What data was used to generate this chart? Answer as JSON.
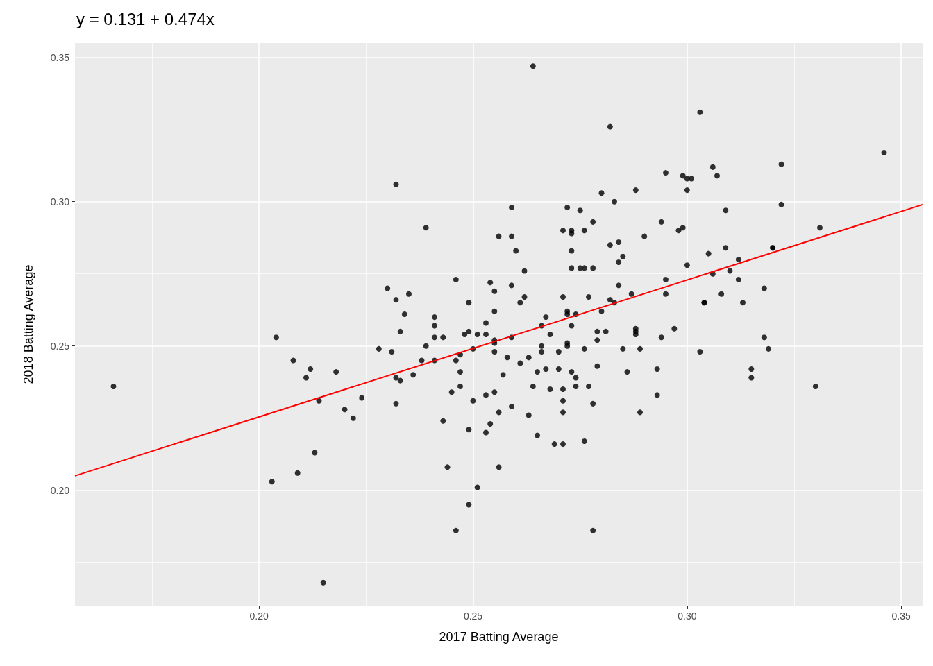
{
  "chart_data": {
    "type": "scatter",
    "title": "y = 0.131 + 0.474x",
    "xlabel": "2017 Batting Average",
    "ylabel": "2018 Batting Average",
    "xlim": [
      0.157,
      0.355
    ],
    "ylim": [
      0.16,
      0.355
    ],
    "xticks": [
      {
        "value": 0.2,
        "label": "0.20"
      },
      {
        "value": 0.25,
        "label": "0.25"
      },
      {
        "value": 0.3,
        "label": "0.30"
      },
      {
        "value": 0.35,
        "label": "0.35"
      }
    ],
    "yticks": [
      {
        "value": 0.2,
        "label": "0.20"
      },
      {
        "value": 0.25,
        "label": "0.25"
      },
      {
        "value": 0.3,
        "label": "0.30"
      },
      {
        "value": 0.35,
        "label": "0.35"
      }
    ],
    "grid": true,
    "series": [
      {
        "color": "#000000",
        "marker": "circle",
        "x": [
          0.166,
          0.203,
          0.204,
          0.208,
          0.209,
          0.211,
          0.212,
          0.213,
          0.214,
          0.215,
          0.218,
          0.22,
          0.222,
          0.224,
          0.228,
          0.23,
          0.231,
          0.232,
          0.232,
          0.232,
          0.232,
          0.233,
          0.233,
          0.234,
          0.235,
          0.236,
          0.238,
          0.239,
          0.239,
          0.241,
          0.241,
          0.241,
          0.241,
          0.243,
          0.243,
          0.244,
          0.245,
          0.246,
          0.246,
          0.246,
          0.247,
          0.247,
          0.247,
          0.248,
          0.249,
          0.249,
          0.249,
          0.249,
          0.25,
          0.25,
          0.251,
          0.251,
          0.253,
          0.253,
          0.253,
          0.253,
          0.254,
          0.254,
          0.255,
          0.255,
          0.255,
          0.255,
          0.255,
          0.255,
          0.256,
          0.256,
          0.256,
          0.257,
          0.258,
          0.259,
          0.259,
          0.259,
          0.259,
          0.259,
          0.26,
          0.261,
          0.261,
          0.262,
          0.262,
          0.263,
          0.263,
          0.264,
          0.265,
          0.265,
          0.266,
          0.266,
          0.266,
          0.267,
          0.267,
          0.268,
          0.268,
          0.269,
          0.27,
          0.27,
          0.271,
          0.271,
          0.271,
          0.271,
          0.271,
          0.271,
          0.272,
          0.272,
          0.272,
          0.272,
          0.272,
          0.273,
          0.273,
          0.273,
          0.273,
          0.273,
          0.273,
          0.274,
          0.274,
          0.274,
          0.275,
          0.275,
          0.276,
          0.276,
          0.276,
          0.276,
          0.277,
          0.277,
          0.278,
          0.278,
          0.278,
          0.278,
          0.279,
          0.279,
          0.279,
          0.28,
          0.28,
          0.281,
          0.282,
          0.282,
          0.282,
          0.283,
          0.283,
          0.284,
          0.284,
          0.284,
          0.285,
          0.285,
          0.286,
          0.287,
          0.288,
          0.288,
          0.288,
          0.288,
          0.289,
          0.289,
          0.29,
          0.293,
          0.293,
          0.294,
          0.294,
          0.295,
          0.295,
          0.295,
          0.297,
          0.298,
          0.299,
          0.299,
          0.3,
          0.3,
          0.3,
          0.301,
          0.303,
          0.303,
          0.304,
          0.304,
          0.305,
          0.306,
          0.306,
          0.307,
          0.308,
          0.309,
          0.309,
          0.31,
          0.312,
          0.312,
          0.313,
          0.315,
          0.315,
          0.318,
          0.318,
          0.319,
          0.32,
          0.32,
          0.322,
          0.322,
          0.33,
          0.331,
          0.346,
          0.264
        ],
        "values": [
          0.236,
          0.203,
          0.253,
          0.245,
          0.206,
          0.239,
          0.242,
          0.213,
          0.231,
          0.168,
          0.241,
          0.228,
          0.225,
          0.232,
          0.249,
          0.27,
          0.248,
          0.239,
          0.266,
          0.306,
          0.23,
          0.238,
          0.255,
          0.261,
          0.268,
          0.24,
          0.245,
          0.291,
          0.25,
          0.26,
          0.253,
          0.257,
          0.245,
          0.224,
          0.253,
          0.208,
          0.234,
          0.273,
          0.186,
          0.245,
          0.241,
          0.247,
          0.236,
          0.254,
          0.255,
          0.265,
          0.195,
          0.221,
          0.249,
          0.231,
          0.201,
          0.254,
          0.258,
          0.22,
          0.233,
          0.254,
          0.272,
          0.223,
          0.234,
          0.269,
          0.262,
          0.248,
          0.251,
          0.252,
          0.208,
          0.227,
          0.288,
          0.24,
          0.246,
          0.298,
          0.288,
          0.271,
          0.229,
          0.253,
          0.283,
          0.244,
          0.265,
          0.276,
          0.267,
          0.246,
          0.226,
          0.236,
          0.241,
          0.219,
          0.257,
          0.25,
          0.248,
          0.26,
          0.242,
          0.235,
          0.254,
          0.216,
          0.242,
          0.248,
          0.29,
          0.216,
          0.267,
          0.235,
          0.231,
          0.227,
          0.25,
          0.261,
          0.251,
          0.298,
          0.262,
          0.283,
          0.257,
          0.29,
          0.289,
          0.241,
          0.277,
          0.261,
          0.239,
          0.236,
          0.297,
          0.277,
          0.249,
          0.29,
          0.277,
          0.217,
          0.236,
          0.267,
          0.23,
          0.277,
          0.293,
          0.186,
          0.252,
          0.255,
          0.243,
          0.262,
          0.303,
          0.255,
          0.266,
          0.285,
          0.326,
          0.3,
          0.265,
          0.271,
          0.279,
          0.286,
          0.281,
          0.249,
          0.241,
          0.268,
          0.256,
          0.255,
          0.304,
          0.254,
          0.249,
          0.227,
          0.288,
          0.242,
          0.233,
          0.293,
          0.253,
          0.273,
          0.31,
          0.268,
          0.256,
          0.29,
          0.291,
          0.309,
          0.304,
          0.308,
          0.278,
          0.308,
          0.331,
          0.248,
          0.265,
          0.265,
          0.282,
          0.312,
          0.275,
          0.309,
          0.268,
          0.297,
          0.284,
          0.276,
          0.28,
          0.273,
          0.265,
          0.242,
          0.239,
          0.27,
          0.253,
          0.249,
          0.284,
          0.284,
          0.313,
          0.299,
          0.236,
          0.291,
          0.317,
          0.347
        ]
      },
      {
        "type": "line",
        "color": "#ff0000",
        "marker": "none",
        "x": [
          0.157,
          0.355
        ],
        "values": [
          0.205,
          0.299
        ]
      }
    ]
  }
}
